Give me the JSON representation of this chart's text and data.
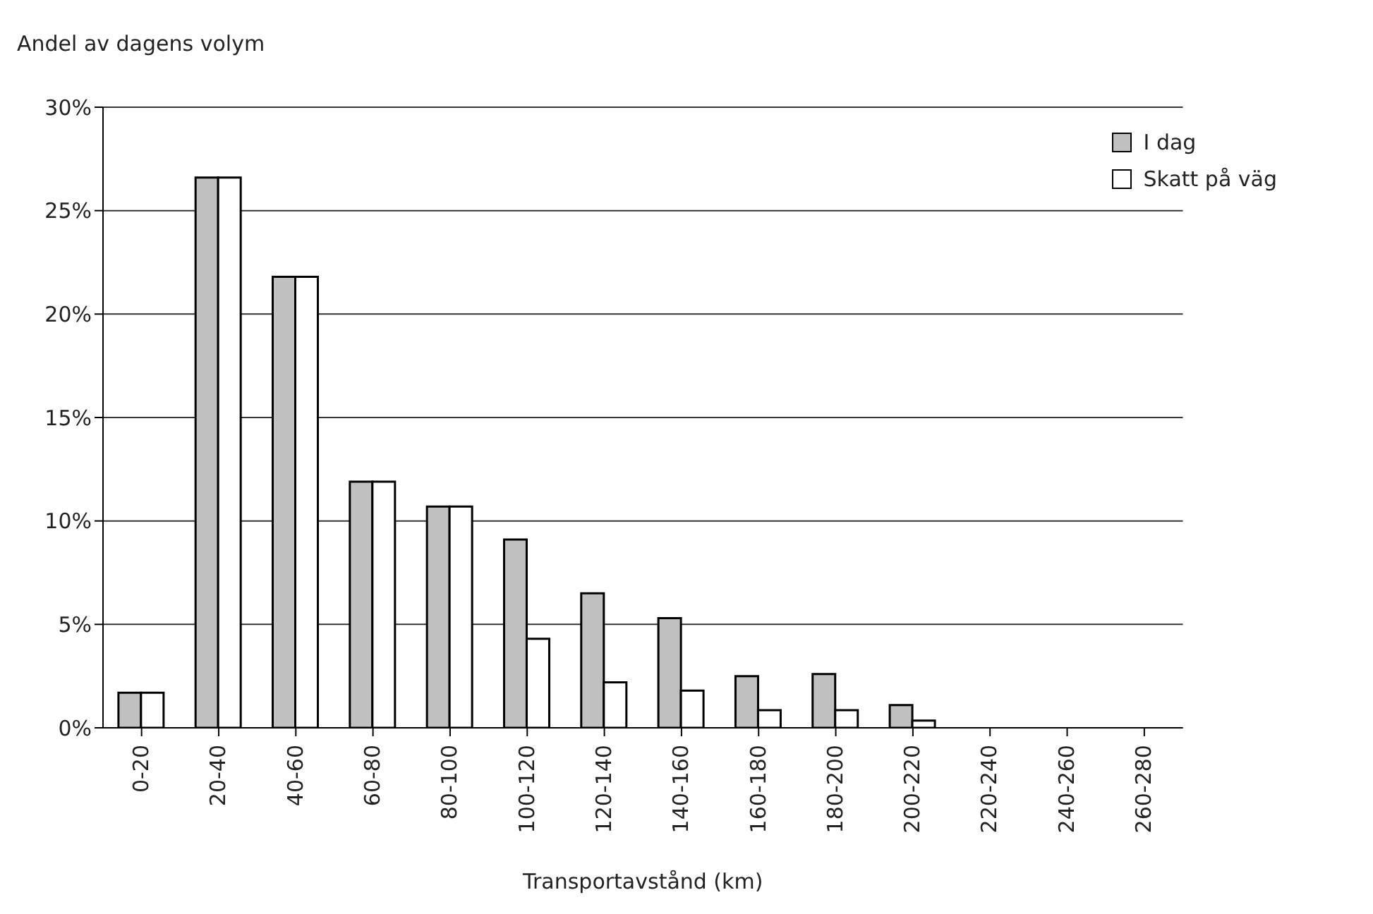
{
  "chart_data": {
    "type": "bar",
    "ylabel": "Andel av dagens volym",
    "xlabel": "Transportavstånd (km)",
    "categories": [
      "0-20",
      "20-40",
      "40-60",
      "60-80",
      "80-100",
      "100-120",
      "120-140",
      "140-160",
      "160-180",
      "180-200",
      "200-220",
      "220-240",
      "240-260",
      "260-280"
    ],
    "series": [
      {
        "name": "I dag",
        "color": "#c0c0c0",
        "values": [
          1.7,
          26.6,
          21.8,
          11.9,
          10.7,
          9.1,
          6.5,
          5.3,
          2.5,
          2.6,
          1.1,
          0,
          0,
          0
        ]
      },
      {
        "name": "Skatt på väg",
        "color": "#ffffff",
        "values": [
          1.7,
          26.6,
          21.8,
          11.9,
          10.7,
          4.3,
          2.2,
          1.8,
          0.85,
          0.85,
          0.35,
          0,
          0,
          0
        ]
      }
    ],
    "ylim": [
      0,
      30
    ],
    "yticks": [
      {
        "value": 0,
        "label": "0%"
      },
      {
        "value": 5,
        "label": "5%"
      },
      {
        "value": 10,
        "label": "10%"
      },
      {
        "value": 15,
        "label": "15%"
      },
      {
        "value": 20,
        "label": "20%"
      },
      {
        "value": 25,
        "label": "25%"
      },
      {
        "value": 30,
        "label": "30%"
      }
    ],
    "grid": "y",
    "legend": "top right"
  }
}
